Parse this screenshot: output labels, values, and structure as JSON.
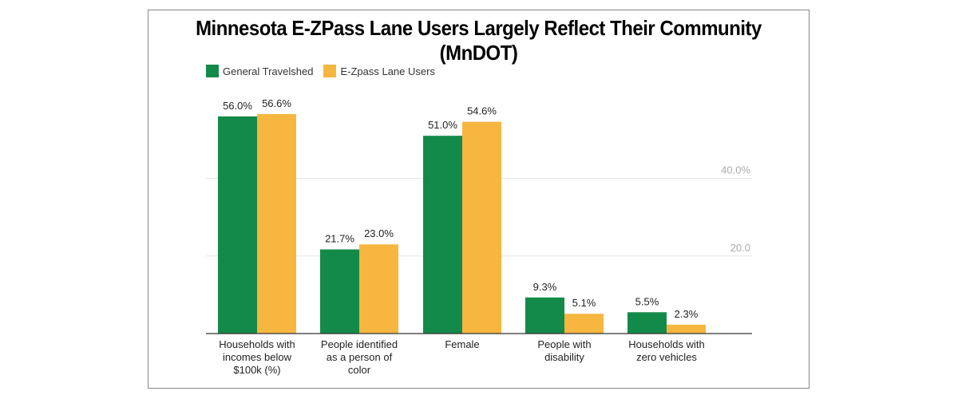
{
  "chart_data": {
    "type": "bar",
    "title": "Minnesota E-ZPass Lane Users Largely Reflect Their Community (MnDOT)",
    "categories": [
      [
        "Households with",
        "incomes below",
        "$100k (%)"
      ],
      [
        "People identified",
        "as a person of",
        "color"
      ],
      [
        "Female"
      ],
      [
        "People with",
        "disability"
      ],
      [
        "Households with",
        "zero vehicles"
      ]
    ],
    "series": [
      {
        "name": "General Travelshed",
        "color": "#148a4a",
        "values": [
          56.0,
          21.7,
          51.0,
          9.3,
          5.5
        ],
        "labels": [
          "56.0%",
          "21.7%",
          "51.0%",
          "9.3%",
          "5.5%"
        ]
      },
      {
        "name": "E-Zpass Lane Users",
        "color": "#f6b63f",
        "values": [
          56.6,
          23.0,
          54.6,
          5.1,
          2.3
        ],
        "labels": [
          "56.6%",
          "23.0%",
          "54.6%",
          "5.1%",
          "2.3%"
        ]
      }
    ],
    "yticks": [
      {
        "value": 20,
        "label": "20.0"
      },
      {
        "value": 40,
        "label": "40.0%"
      }
    ],
    "ylim": [
      0,
      60
    ],
    "legend": "top-left",
    "grid": true,
    "xlabel": "",
    "ylabel": ""
  }
}
